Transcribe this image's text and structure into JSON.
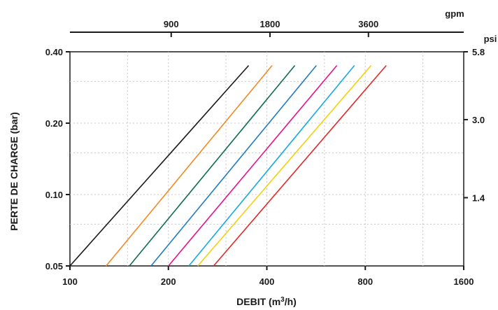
{
  "chart_data": {
    "type": "line",
    "xlabel": "DEBIT (m3/h)",
    "xlabel_main": "DEBIT (m",
    "xlabel_sup": "3",
    "xlabel_tail": "/h)",
    "ylabel": "PERTE DE CHARGE  (bar)",
    "x_scale": "log",
    "y_scale": "log",
    "xlim": [
      100,
      1600
    ],
    "ylim": [
      0.05,
      0.4
    ],
    "x_ticks": [
      100,
      200,
      400,
      800,
      1600
    ],
    "x_tick_labels": [
      "100",
      "200",
      "400",
      "800",
      "1600"
    ],
    "y_ticks": [
      0.05,
      0.1,
      0.2,
      0.4
    ],
    "y_tick_labels": [
      "0.05",
      "0.10",
      "0.20",
      "0.40"
    ],
    "top_axis": {
      "unit": "gpm",
      "ticks": [
        {
          "label": "900",
          "at_m3h": 204
        },
        {
          "label": "1800",
          "at_m3h": 409
        },
        {
          "label": "3600",
          "at_m3h": 818
        }
      ]
    },
    "right_axis": {
      "unit": "psi",
      "ticks": [
        {
          "label": "5.8",
          "at_bar": 0.4
        },
        {
          "label": "3.0",
          "at_bar": 0.207
        },
        {
          "label": "1.4",
          "at_bar": 0.097
        }
      ]
    },
    "grid": true,
    "series": [
      {
        "color": "#1a1a1a",
        "x": [
          100,
          352
        ],
        "y": [
          0.05,
          0.35
        ]
      },
      {
        "color": "#f08a24",
        "x": [
          129,
          415
        ],
        "y": [
          0.05,
          0.35
        ]
      },
      {
        "color": "#0f6e4e",
        "x": [
          152,
          487
        ],
        "y": [
          0.05,
          0.35
        ]
      },
      {
        "color": "#1f7bc0",
        "x": [
          177,
          567
        ],
        "y": [
          0.05,
          0.35
        ]
      },
      {
        "color": "#e5128a",
        "x": [
          200,
          655
        ],
        "y": [
          0.05,
          0.35
        ]
      },
      {
        "color": "#17a9e0",
        "x": [
          231,
          741
        ],
        "y": [
          0.05,
          0.35
        ]
      },
      {
        "color": "#f5cf0a",
        "x": [
          246,
          833
        ],
        "y": [
          0.05,
          0.35
        ]
      },
      {
        "color": "#e02a2a",
        "x": [
          275,
          927
        ],
        "y": [
          0.05,
          0.35
        ]
      }
    ]
  }
}
